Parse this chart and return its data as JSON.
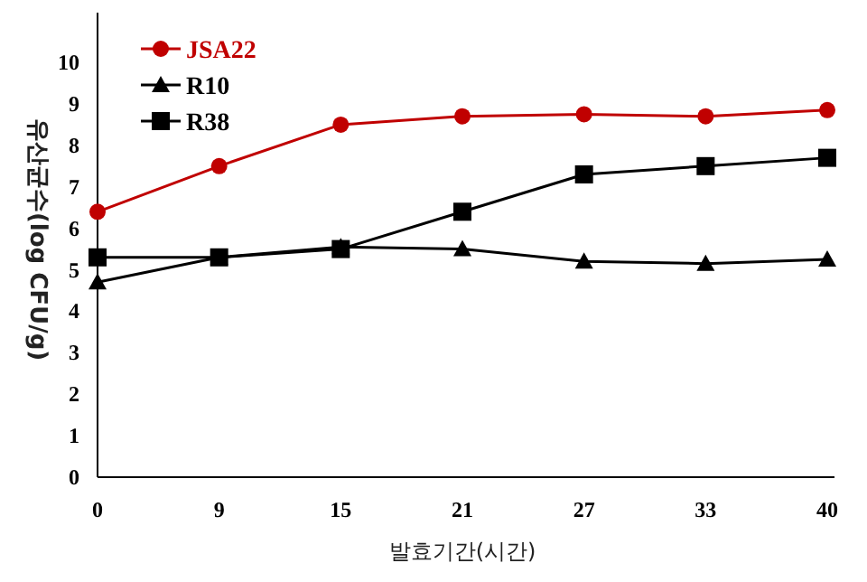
{
  "chart_data": {
    "type": "line",
    "xlabel": "발효기간(시간)",
    "ylabel": "유산균수(log CFU/g)",
    "categories": [
      "0",
      "9",
      "15",
      "21",
      "27",
      "33",
      "40"
    ],
    "ylim": [
      0,
      11.2
    ],
    "yticks": [
      0,
      1,
      2,
      3,
      4,
      5,
      6,
      7,
      8,
      9,
      10
    ],
    "legend": "top left",
    "line_style": "solid",
    "series": [
      {
        "name": "JSA22",
        "color": "#c00000",
        "marker": "circle",
        "values": [
          6.4,
          7.5,
          8.5,
          8.7,
          8.75,
          8.7,
          8.85
        ]
      },
      {
        "name": "R10",
        "color": "#000000",
        "marker": "triangle",
        "values": [
          4.7,
          5.3,
          5.55,
          5.5,
          5.2,
          5.15,
          5.25
        ]
      },
      {
        "name": "R38",
        "color": "#000000",
        "marker": "square",
        "values": [
          5.3,
          5.3,
          5.5,
          6.4,
          7.3,
          7.5,
          7.7
        ]
      }
    ]
  }
}
